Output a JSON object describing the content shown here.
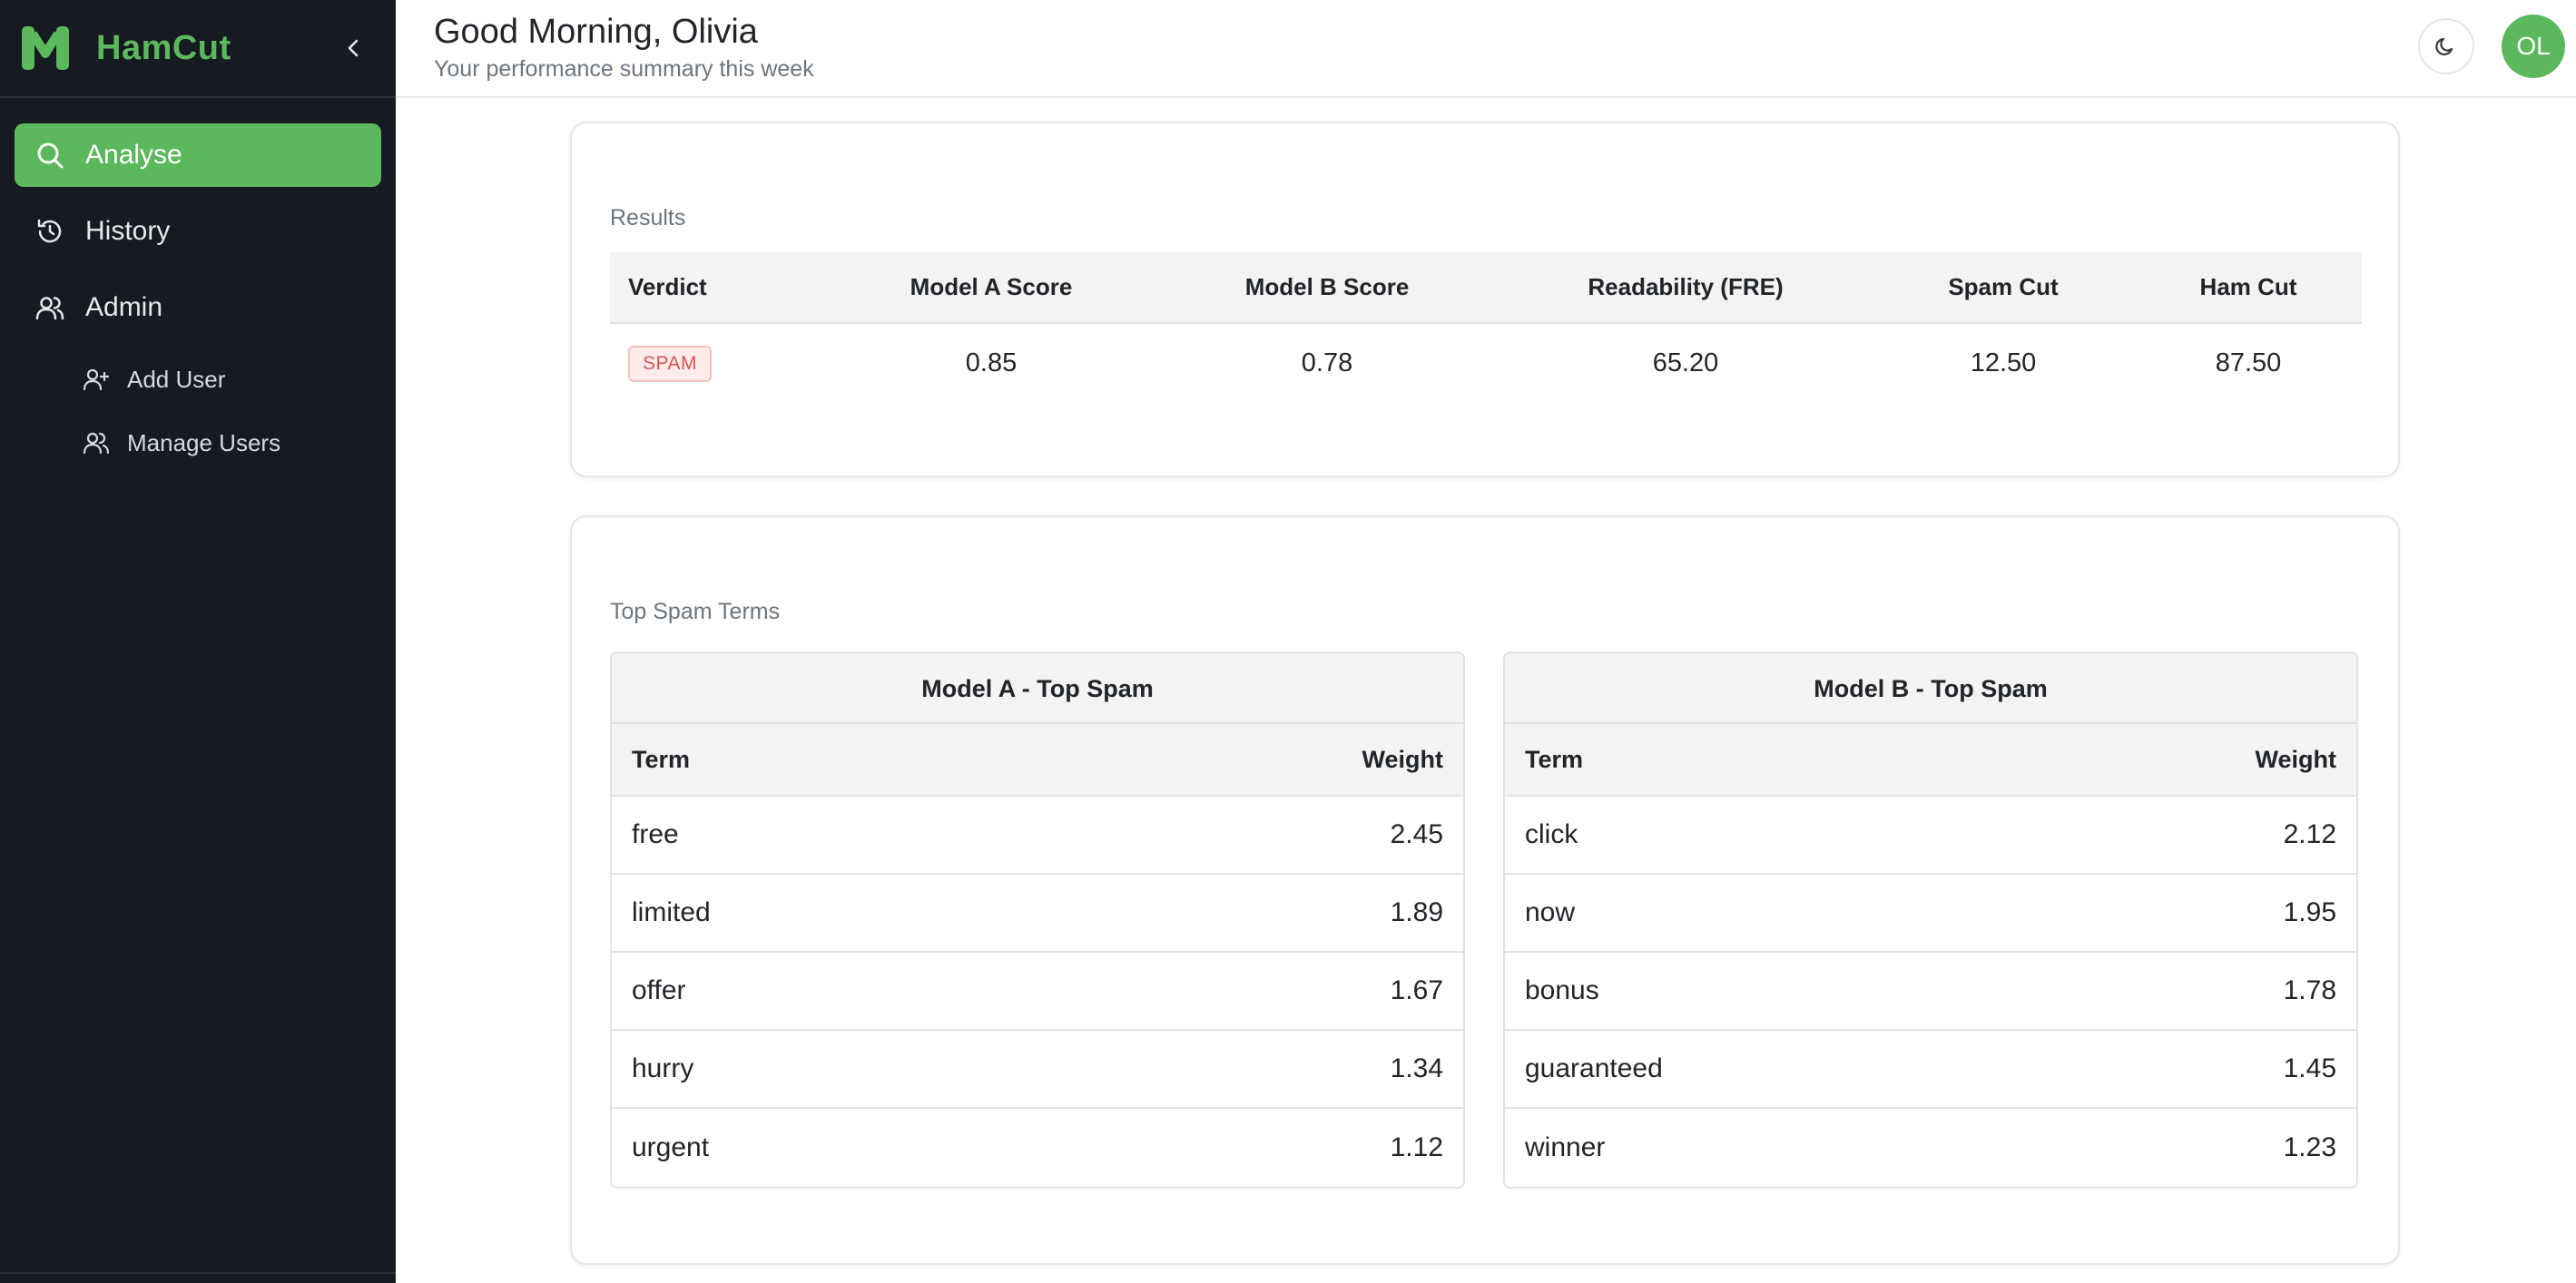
{
  "brand": {
    "name": "HamCut",
    "color": "#5cb85c"
  },
  "sidebar": {
    "items": [
      {
        "label": "Analyse",
        "icon": "search-icon",
        "active": true
      },
      {
        "label": "History",
        "icon": "history-icon",
        "active": false
      },
      {
        "label": "Admin",
        "icon": "users-icon",
        "active": false
      }
    ],
    "sub_items": [
      {
        "label": "Add User",
        "icon": "user-plus-icon"
      },
      {
        "label": "Manage Users",
        "icon": "users-icon"
      }
    ]
  },
  "header": {
    "greeting": "Good Morning, Olivia",
    "subtitle": "Your performance summary this week",
    "theme_icon": "moon-icon",
    "avatar_initials": "OL"
  },
  "results": {
    "label": "Results",
    "columns": [
      "Verdict",
      "Model A Score",
      "Model B Score",
      "Readability (FRE)",
      "Spam Cut",
      "Ham Cut"
    ],
    "row": {
      "verdict": "SPAM",
      "model_a": "0.85",
      "model_b": "0.78",
      "readability": "65.20",
      "spam_cut": "12.50",
      "ham_cut": "87.50"
    },
    "verdict_color": "#d9534f"
  },
  "top_terms": {
    "label": "Top Spam Terms",
    "model_a": {
      "title": "Model A - Top Spam",
      "col_term": "Term",
      "col_weight": "Weight",
      "rows": [
        {
          "term": "free",
          "weight": "2.45"
        },
        {
          "term": "limited",
          "weight": "1.89"
        },
        {
          "term": "offer",
          "weight": "1.67"
        },
        {
          "term": "hurry",
          "weight": "1.34"
        },
        {
          "term": "urgent",
          "weight": "1.12"
        }
      ]
    },
    "model_b": {
      "title": "Model B - Top Spam",
      "col_term": "Term",
      "col_weight": "Weight",
      "rows": [
        {
          "term": "click",
          "weight": "2.12"
        },
        {
          "term": "now",
          "weight": "1.95"
        },
        {
          "term": "bonus",
          "weight": "1.78"
        },
        {
          "term": "guaranteed",
          "weight": "1.45"
        },
        {
          "term": "winner",
          "weight": "1.23"
        }
      ]
    }
  }
}
